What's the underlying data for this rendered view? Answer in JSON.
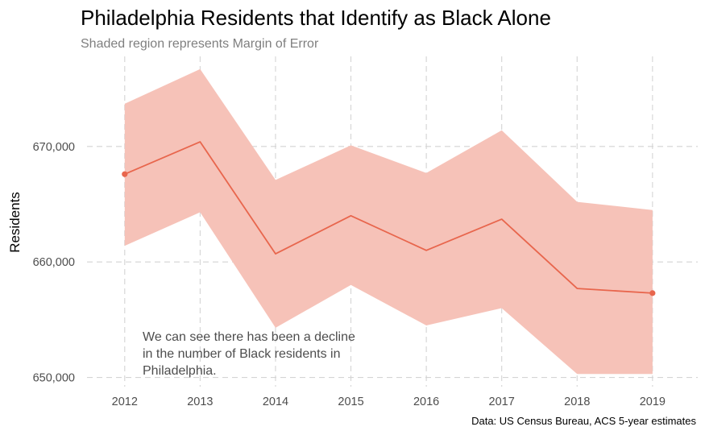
{
  "chart_data": {
    "type": "line",
    "title": "Philadelphia Residents that Identify as Black Alone",
    "subtitle": "Shaded region represents Margin of Error",
    "ylabel": "Residents",
    "xlabel": "",
    "caption": "Data: US Census Bureau, ACS 5-year estimates",
    "annotation": [
      "We can see there has been a decline",
      "in the number of Black residents in",
      "Philadelphia."
    ],
    "x": [
      2012,
      2013,
      2014,
      2015,
      2016,
      2017,
      2018,
      2019
    ],
    "x_tick_labels": [
      "2012",
      "2013",
      "2014",
      "2015",
      "2016",
      "2017",
      "2018",
      "2019"
    ],
    "y_ticks": [
      650000,
      660000,
      670000
    ],
    "y_tick_labels": [
      "650,000",
      "660,000",
      "670,000"
    ],
    "xlim": [
      2011.5,
      2019.6
    ],
    "ylim": [
      649200,
      677800
    ],
    "series": [
      {
        "values": [
          667600,
          670400,
          660700,
          664000,
          661000,
          663700,
          657700,
          657300
        ],
        "lower": [
          661400,
          664300,
          654300,
          658000,
          654500,
          656000,
          650300,
          650300
        ],
        "upper": [
          673700,
          676700,
          667100,
          670100,
          667700,
          671400,
          665200,
          664500
        ],
        "color": "#e8664d",
        "band_color": "#f6c2b8"
      }
    ],
    "endpoint_markers": true,
    "grid": true,
    "legend": "none"
  }
}
